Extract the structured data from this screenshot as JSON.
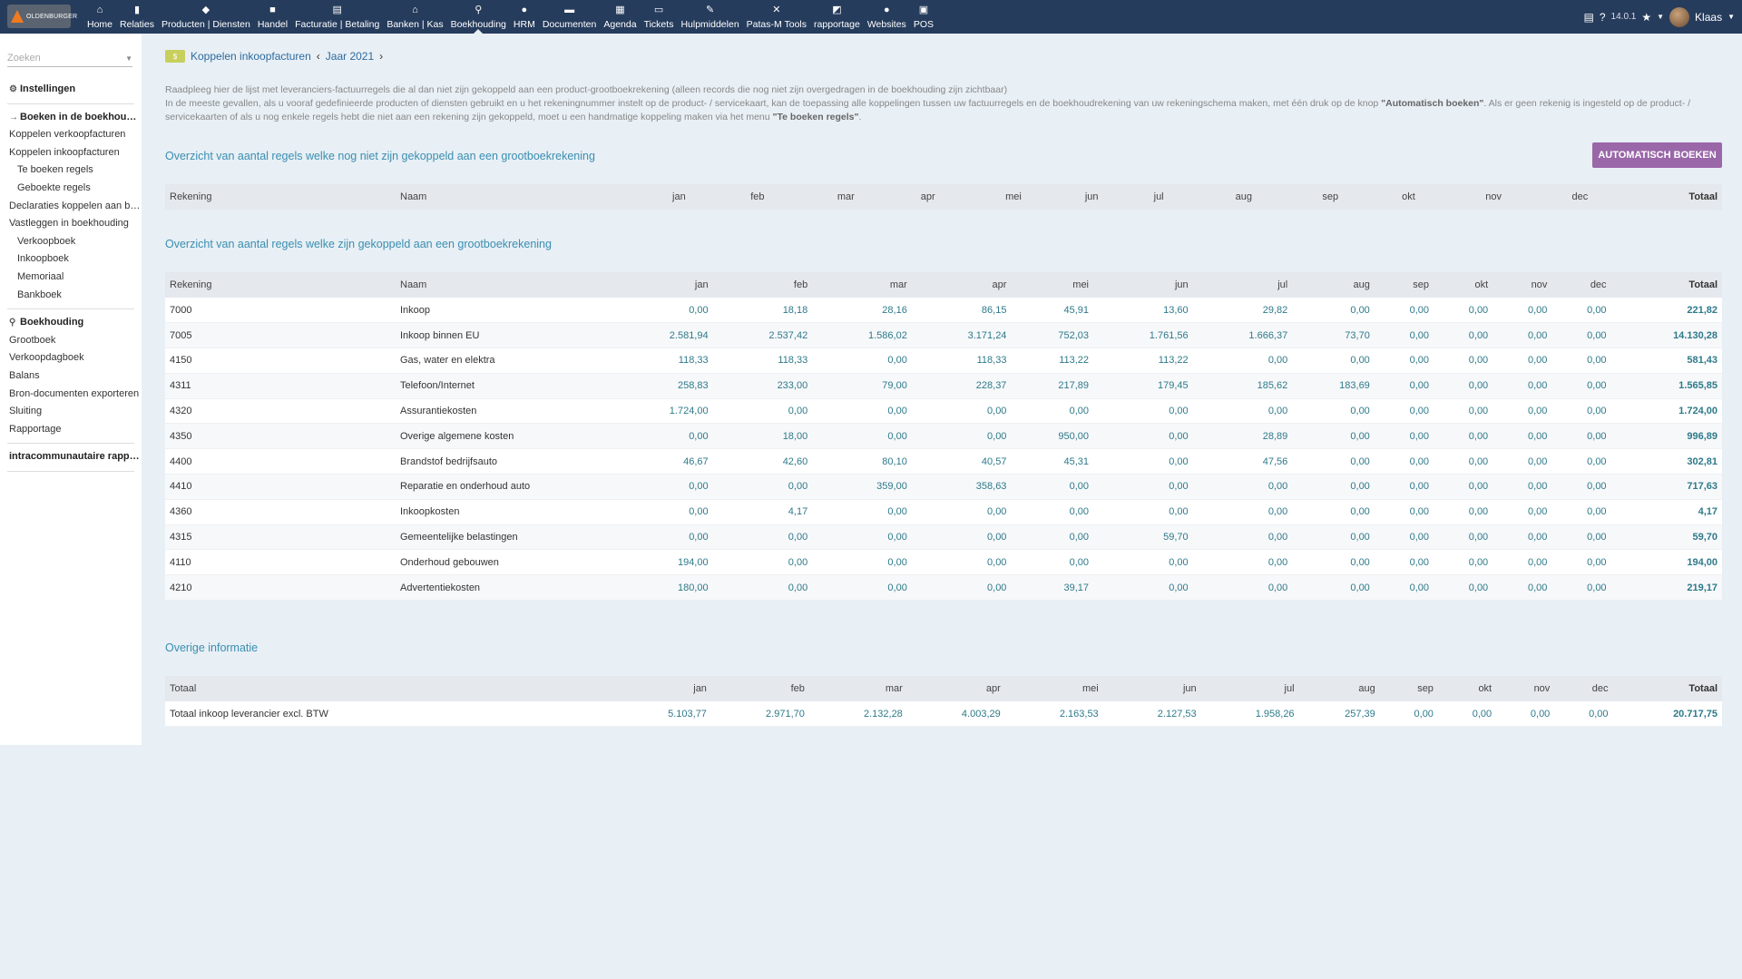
{
  "topbar": {
    "logo_text": "OLDENBURGER",
    "menu": [
      {
        "icon": "home-icon",
        "glyph": "⌂",
        "label": "Home"
      },
      {
        "icon": "building-icon",
        "glyph": "▮",
        "label": "Relaties"
      },
      {
        "icon": "cube-icon",
        "glyph": "◆",
        "label": "Producten | Diensten"
      },
      {
        "icon": "briefcase-icon",
        "glyph": "■",
        "label": "Handel"
      },
      {
        "icon": "money-icon",
        "glyph": "▤",
        "label": "Facturatie | Betaling"
      },
      {
        "icon": "bank-icon",
        "glyph": "⌂",
        "label": "Banken | Kas"
      },
      {
        "icon": "search-dollar-icon",
        "glyph": "⚲",
        "label": "Boekhouding"
      },
      {
        "icon": "user-icon",
        "glyph": "●",
        "label": "HRM"
      },
      {
        "icon": "folder-icon",
        "glyph": "▬",
        "label": "Documenten"
      },
      {
        "icon": "calendar-icon",
        "glyph": "▦",
        "label": "Agenda"
      },
      {
        "icon": "ticket-icon",
        "glyph": "▭",
        "label": "Tickets"
      },
      {
        "icon": "wrench-icon",
        "glyph": "✎",
        "label": "Hulpmiddelen"
      },
      {
        "icon": "tools-icon",
        "glyph": "✕",
        "label": "Patas-M Tools"
      },
      {
        "icon": "chart-icon",
        "glyph": "◩",
        "label": "rapportage"
      },
      {
        "icon": "globe-icon",
        "glyph": "●",
        "label": "Websites"
      },
      {
        "icon": "cash-register-icon",
        "glyph": "▣",
        "label": "POS"
      }
    ],
    "active_index": 6,
    "version": "14.0.1",
    "user": "Klaas"
  },
  "sidebar": {
    "search_placeholder": "Zoeken",
    "items": [
      {
        "label": "Instellingen",
        "type": "head",
        "icon": "⚙"
      },
      {
        "type": "sep"
      },
      {
        "label": "Boeken in de boekhouding",
        "type": "head",
        "icon": "→"
      },
      {
        "label": "Koppelen verkoopfacturen",
        "type": "item"
      },
      {
        "label": "Koppelen inkoopfacturen",
        "type": "item"
      },
      {
        "label": "Te boeken regels",
        "type": "sub"
      },
      {
        "label": "Geboekte regels",
        "type": "sub"
      },
      {
        "label": "Declaraties koppelen aan boekhouding",
        "type": "item"
      },
      {
        "label": "Vastleggen in boekhouding",
        "type": "item"
      },
      {
        "label": "Verkoopboek",
        "type": "sub"
      },
      {
        "label": "Inkoopboek",
        "type": "sub"
      },
      {
        "label": "Memoriaal",
        "type": "sub"
      },
      {
        "label": "Bankboek",
        "type": "sub"
      },
      {
        "type": "sep"
      },
      {
        "label": "Boekhouding",
        "type": "head",
        "icon": "⚲"
      },
      {
        "label": "Grootboek",
        "type": "item"
      },
      {
        "label": "Verkoopdagboek",
        "type": "item"
      },
      {
        "label": "Balans",
        "type": "item"
      },
      {
        "label": "Bron-documenten exporteren",
        "type": "item"
      },
      {
        "label": "Sluiting",
        "type": "item"
      },
      {
        "label": "Rapportage",
        "type": "item"
      },
      {
        "type": "sep"
      },
      {
        "label": "intracommunautaire rapportage",
        "type": "head"
      },
      {
        "type": "sep"
      }
    ]
  },
  "breadcrumb": {
    "page": "Koppelen inkoopfacturen",
    "year": "Jaar 2021",
    "icon_text": "$"
  },
  "intro": {
    "line1": "Raadpleeg hier de lijst met leveranciers-factuurregels die al dan niet zijn gekoppeld aan een product-grootboekrekening (alleen records die nog niet zijn overgedragen in de boekhouding zijn zichtbaar)",
    "line2a": "In de meeste gevallen, als u vooraf gedefinieerde producten of diensten gebruikt en u het rekeningnummer instelt op de product- / servicekaart, kan de toepassing alle koppelingen tussen uw factuurregels en de boekhoudrekening van uw rekeningschema maken, met één druk op de knop ",
    "line2b": "\"Automatisch boeken\"",
    "line2c": ". Als er geen rekenig is ingesteld op de product- / servicekaarten of als u nog enkele regels hebt die niet aan een rekening zijn gekoppeld, moet u een handmatige koppeling maken via het menu ",
    "line2d": "\"Te boeken regels\"",
    "line2e": "."
  },
  "auto_button": "AUTOMATISCH BOEKEN",
  "section1": {
    "title": "Overzicht van aantal regels welke nog niet zijn gekoppeld aan een grootboekrekening"
  },
  "section2": {
    "title": "Overzicht van aantal regels welke zijn gekoppeld aan een grootboekrekening"
  },
  "section3": {
    "title": "Overige informatie"
  },
  "columns": {
    "rekening": "Rekening",
    "naam": "Naam",
    "totaal_label": "Totaal",
    "months": [
      "jan",
      "feb",
      "mar",
      "apr",
      "mei",
      "jun",
      "jul",
      "aug",
      "sep",
      "okt",
      "nov",
      "dec"
    ],
    "total": "Totaal"
  },
  "linked_rows": [
    {
      "rekening": "7000",
      "naam": "Inkoop",
      "values": [
        "0,00",
        "18,18",
        "28,16",
        "86,15",
        "45,91",
        "13,60",
        "29,82",
        "0,00",
        "0,00",
        "0,00",
        "0,00",
        "0,00"
      ],
      "total": "221,82"
    },
    {
      "rekening": "7005",
      "naam": "Inkoop binnen EU",
      "values": [
        "2.581,94",
        "2.537,42",
        "1.586,02",
        "3.171,24",
        "752,03",
        "1.761,56",
        "1.666,37",
        "73,70",
        "0,00",
        "0,00",
        "0,00",
        "0,00"
      ],
      "total": "14.130,28"
    },
    {
      "rekening": "4150",
      "naam": "Gas, water en elektra",
      "values": [
        "118,33",
        "118,33",
        "0,00",
        "118,33",
        "113,22",
        "113,22",
        "0,00",
        "0,00",
        "0,00",
        "0,00",
        "0,00",
        "0,00"
      ],
      "total": "581,43"
    },
    {
      "rekening": "4311",
      "naam": "Telefoon/Internet",
      "values": [
        "258,83",
        "233,00",
        "79,00",
        "228,37",
        "217,89",
        "179,45",
        "185,62",
        "183,69",
        "0,00",
        "0,00",
        "0,00",
        "0,00"
      ],
      "total": "1.565,85"
    },
    {
      "rekening": "4320",
      "naam": "Assurantiekosten",
      "values": [
        "1.724,00",
        "0,00",
        "0,00",
        "0,00",
        "0,00",
        "0,00",
        "0,00",
        "0,00",
        "0,00",
        "0,00",
        "0,00",
        "0,00"
      ],
      "total": "1.724,00"
    },
    {
      "rekening": "4350",
      "naam": "Overige algemene kosten",
      "values": [
        "0,00",
        "18,00",
        "0,00",
        "0,00",
        "950,00",
        "0,00",
        "28,89",
        "0,00",
        "0,00",
        "0,00",
        "0,00",
        "0,00"
      ],
      "total": "996,89"
    },
    {
      "rekening": "4400",
      "naam": "Brandstof bedrijfsauto",
      "values": [
        "46,67",
        "42,60",
        "80,10",
        "40,57",
        "45,31",
        "0,00",
        "47,56",
        "0,00",
        "0,00",
        "0,00",
        "0,00",
        "0,00"
      ],
      "total": "302,81"
    },
    {
      "rekening": "4410",
      "naam": "Reparatie en onderhoud auto",
      "values": [
        "0,00",
        "0,00",
        "359,00",
        "358,63",
        "0,00",
        "0,00",
        "0,00",
        "0,00",
        "0,00",
        "0,00",
        "0,00",
        "0,00"
      ],
      "total": "717,63"
    },
    {
      "rekening": "4360",
      "naam": "Inkoopkosten",
      "values": [
        "0,00",
        "4,17",
        "0,00",
        "0,00",
        "0,00",
        "0,00",
        "0,00",
        "0,00",
        "0,00",
        "0,00",
        "0,00",
        "0,00"
      ],
      "total": "4,17"
    },
    {
      "rekening": "4315",
      "naam": "Gemeentelijke belastingen",
      "values": [
        "0,00",
        "0,00",
        "0,00",
        "0,00",
        "0,00",
        "59,70",
        "0,00",
        "0,00",
        "0,00",
        "0,00",
        "0,00",
        "0,00"
      ],
      "total": "59,70"
    },
    {
      "rekening": "4110",
      "naam": "Onderhoud gebouwen",
      "values": [
        "194,00",
        "0,00",
        "0,00",
        "0,00",
        "0,00",
        "0,00",
        "0,00",
        "0,00",
        "0,00",
        "0,00",
        "0,00",
        "0,00"
      ],
      "total": "194,00"
    },
    {
      "rekening": "4210",
      "naam": "Advertentiekosten",
      "values": [
        "180,00",
        "0,00",
        "0,00",
        "0,00",
        "39,17",
        "0,00",
        "0,00",
        "0,00",
        "0,00",
        "0,00",
        "0,00",
        "0,00"
      ],
      "total": "219,17"
    }
  ],
  "other_rows": [
    {
      "naam": "Totaal inkoop leverancier excl. BTW",
      "values": [
        "5.103,77",
        "2.971,70",
        "2.132,28",
        "4.003,29",
        "2.163,53",
        "2.127,53",
        "1.958,26",
        "257,39",
        "0,00",
        "0,00",
        "0,00",
        "0,00"
      ],
      "total": "20.717,75"
    }
  ]
}
